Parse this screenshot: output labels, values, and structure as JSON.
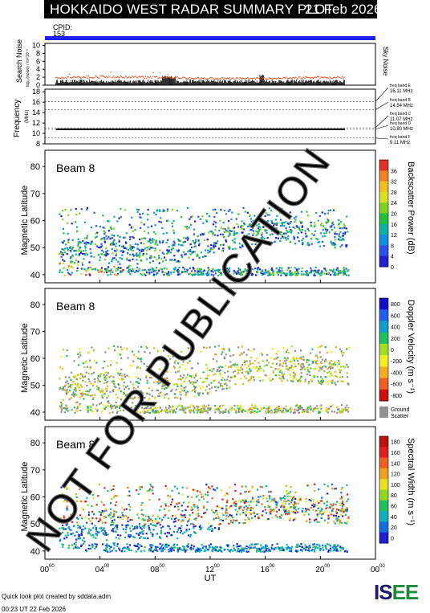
{
  "header": {
    "title": "HOKKAIDO WEST RADAR SUMMARY PLOT",
    "date": "21 Feb 2026",
    "cpid_label": "CPID:",
    "cpid_value": "153"
  },
  "colors": {
    "cpid_bar": "#2020ee",
    "sky_noise": "#e05020",
    "search_noise": "#000000"
  },
  "chart_data": [
    {
      "type": "line",
      "ylabel": "Search Noise",
      "ylabel_sub": "log₁₀(noise) / m×10⁻³",
      "right_label": "Sky Noise",
      "yticks": [
        0,
        2,
        4,
        6,
        8,
        10
      ],
      "ylim": [
        0,
        10.5
      ]
    },
    {
      "type": "line",
      "ylabel": "Frequency",
      "ylabel_sub": "(MHz)",
      "yticks": [
        8,
        10,
        12,
        14,
        16,
        18
      ],
      "ylim": [
        8,
        18.5
      ],
      "freq_bands": [
        {
          "label": "freq band E",
          "value": "16.11 MHz"
        },
        {
          "label": "freq band B",
          "value": "14.54 MHz"
        },
        {
          "label": "freq band C",
          "value": "11.07 MHz"
        },
        {
          "label": "freq band D",
          "value": "10.80 MHz"
        },
        {
          "label": "freq band F",
          "value": "9.11 MHz"
        }
      ],
      "dashed_levels": [
        16.11,
        14.54,
        11.07,
        10.8,
        9.11
      ],
      "operating_freq": 10.8
    },
    {
      "type": "heatmap",
      "beam": "Beam  8",
      "ylabel": "Magnetic Latitude",
      "yticks": [
        40,
        50,
        60,
        70,
        80
      ],
      "ylim": [
        37,
        86
      ],
      "colorbar_label": "Backscatter Power (dB)",
      "colorbar_ticks": [
        "0",
        "4",
        "8",
        "12",
        "16",
        "20",
        "24",
        "28",
        "32",
        "36"
      ]
    },
    {
      "type": "heatmap",
      "beam": "Beam  8",
      "ylabel": "Magnetic Latitude",
      "yticks": [
        40,
        50,
        60,
        70,
        80
      ],
      "ylim": [
        37,
        86
      ],
      "colorbar_label": "Doppler Velocity (m s⁻¹)",
      "colorbar_ticks": [
        "800",
        "600",
        "400",
        "200",
        "0",
        "-200",
        "-400",
        "-600",
        "-800"
      ],
      "ground_scatter_label": "Ground Scatter"
    },
    {
      "type": "heatmap",
      "beam": "Beam  8",
      "ylabel": "Magnetic Latitude",
      "yticks": [
        40,
        50,
        60,
        70,
        80
      ],
      "ylim": [
        37,
        86
      ],
      "colorbar_label": "Spectral Width (m s⁻¹)",
      "colorbar_ticks": [
        "180",
        "160",
        "140",
        "120",
        "100",
        "80",
        "60",
        "40",
        "20",
        "0"
      ]
    }
  ],
  "x_axis": {
    "label": "UT",
    "ticks": [
      "00",
      "04",
      "08",
      "12",
      "16",
      "20",
      "00"
    ],
    "tick_sup": "00"
  },
  "watermark": "NOT FOR PUBLICATION",
  "footer": {
    "line1": "Quick look plot created by sddata.adm",
    "line2": "00:23 UT 22 Feb 2026"
  },
  "logo": "ISEE"
}
